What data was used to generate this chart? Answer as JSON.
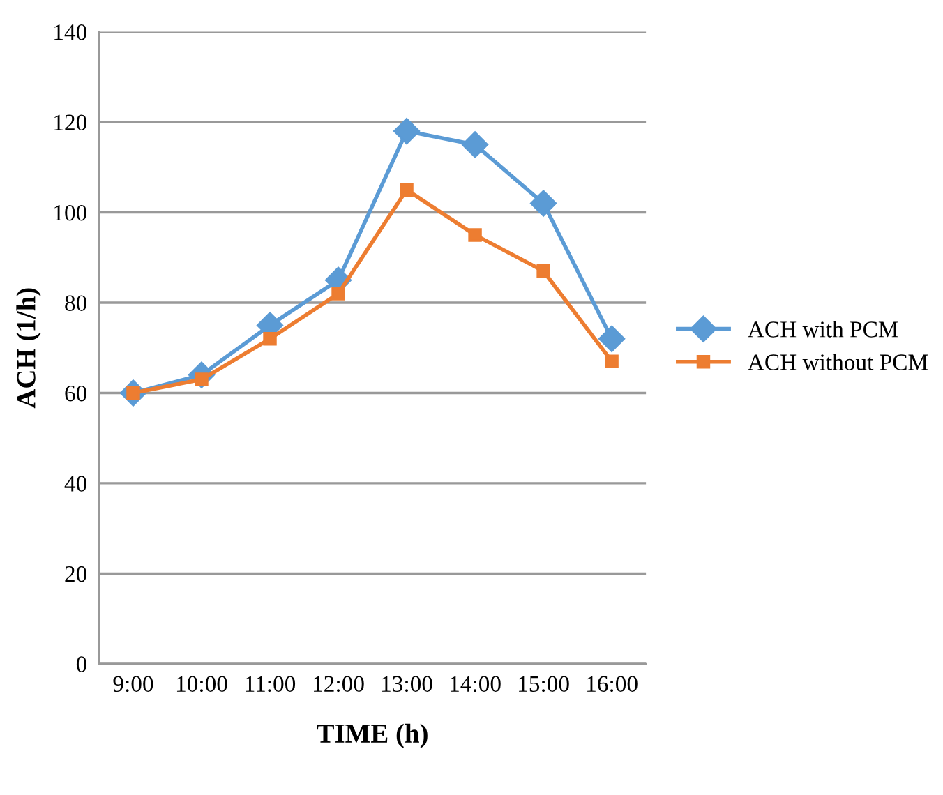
{
  "chart_data": {
    "type": "line",
    "xlabel": "TIME (h)",
    "ylabel": "ACH (1/h)",
    "categories": [
      "9:00",
      "10:00",
      "11:00",
      "12:00",
      "13:00",
      "14:00",
      "15:00",
      "16:00"
    ],
    "series": [
      {
        "name": "ACH with PCM",
        "color": "#5b9bd5",
        "marker": "diamond",
        "values": [
          60,
          64,
          75,
          85,
          118,
          115,
          102,
          72
        ]
      },
      {
        "name": "ACH without PCM",
        "color": "#ed7d31",
        "marker": "square",
        "values": [
          60,
          63,
          72,
          82,
          105,
          95,
          87,
          67
        ]
      }
    ],
    "ylim": [
      0,
      140
    ],
    "yticks": [
      0,
      20,
      40,
      60,
      80,
      100,
      120,
      140
    ],
    "grid": "y",
    "legend": "right",
    "line_style": "solid"
  }
}
